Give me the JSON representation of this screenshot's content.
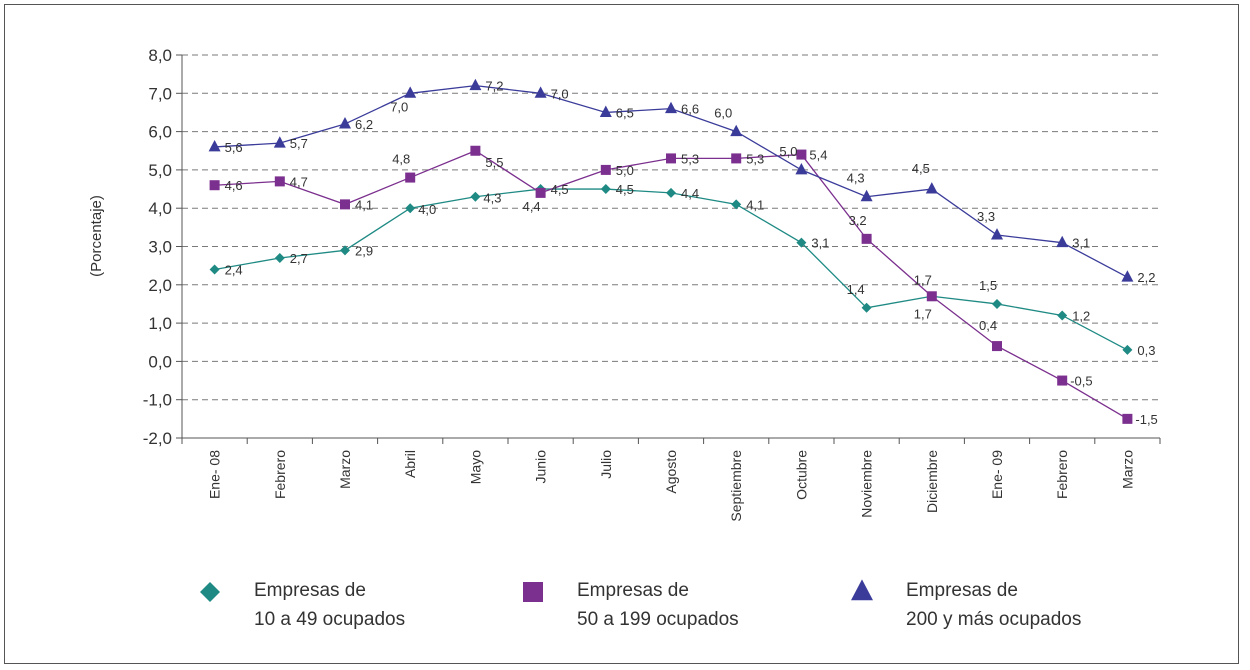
{
  "chart_data": {
    "type": "line",
    "title": "",
    "xlabel": "",
    "ylabel": "(Porcentaje)",
    "ylim": [
      -2.0,
      8.0
    ],
    "ytick_step": 1.0,
    "ytick_labels": [
      "-2,0",
      "-1,0",
      "0,0",
      "1,0",
      "2,0",
      "3,0",
      "4,0",
      "5,0",
      "6,0",
      "7,0",
      "8,0"
    ],
    "grid": true,
    "legend_position": "bottom",
    "categories": [
      "Ene- 08",
      "Febrero",
      "Marzo",
      "Abril",
      "Mayo",
      "Junio",
      "Julio",
      "Agosto",
      "Septiembre",
      "Octubre",
      "Noviembre",
      "Diciembre",
      "Ene- 09",
      "Febrero",
      "Marzo"
    ],
    "series": [
      {
        "name": "Empresas de 10 a 49 ocupados",
        "legend_lines": [
          "Empresas de",
          "10 a 49 ocupados"
        ],
        "color": "#1f8a84",
        "marker": "diamond",
        "values": [
          2.4,
          2.7,
          2.9,
          4.0,
          4.3,
          4.5,
          4.5,
          4.4,
          4.1,
          3.1,
          1.4,
          1.7,
          1.5,
          1.2,
          0.3
        ],
        "labels": [
          "2,4",
          "2,7",
          "2,9",
          "4,0",
          "4,3",
          "4,5",
          "4,5",
          "4,4",
          "4,1",
          "3,1",
          "1,4",
          "1,7",
          "1,5",
          "1,2",
          "0,3"
        ]
      },
      {
        "name": "Empresas de 50 a 199 ocupados",
        "legend_lines": [
          "Empresas de",
          "50 a 199 ocupados"
        ],
        "color": "#7b2f8e",
        "marker": "square",
        "values": [
          4.6,
          4.7,
          4.1,
          4.8,
          5.5,
          4.4,
          5.0,
          5.3,
          5.3,
          5.4,
          3.2,
          1.7,
          0.4,
          -0.5,
          -1.5
        ],
        "labels": [
          "4,6",
          "4,7",
          "4,1",
          "4,8",
          "5,5",
          "4,4",
          "5,0",
          "5,3",
          "5,3",
          "5,4",
          "3,2",
          "1,7",
          "0,4",
          "-0,5",
          "-1,5"
        ]
      },
      {
        "name": "Empresas de 200 y más ocupados",
        "legend_lines": [
          "Empresas de",
          "200 y más ocupados"
        ],
        "color": "#3b3c9a",
        "marker": "triangle",
        "values": [
          5.6,
          5.7,
          6.2,
          7.0,
          7.2,
          7.0,
          6.5,
          6.6,
          6.0,
          5.0,
          4.3,
          4.5,
          3.3,
          3.1,
          2.2
        ],
        "labels": [
          "5,6",
          "5,7",
          "6,2",
          "7,0",
          "7,2",
          "7,0",
          "6,5",
          "6,6",
          "6,0",
          "5,0",
          "4,3",
          "4,5",
          "3,3",
          "3,1",
          "2,2"
        ]
      }
    ]
  }
}
